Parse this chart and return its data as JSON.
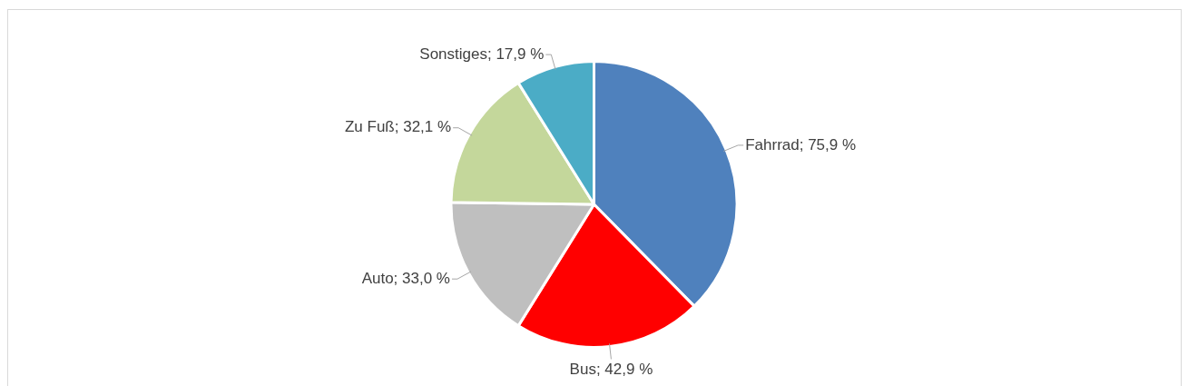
{
  "chart_data": {
    "type": "pie",
    "categories": [
      "Fahrrad",
      "Bus",
      "Auto",
      "Zu Fuß",
      "Sonstiges"
    ],
    "values": [
      75.9,
      42.9,
      33.0,
      32.1,
      17.9
    ],
    "value_labels": [
      "75,9 %",
      "42,9 %",
      "33,0 %",
      "32,1 %",
      "17,9 %"
    ],
    "colors": [
      "#4f81bd",
      "#ff0000",
      "#bfbfbf",
      "#c4d79b",
      "#4bacc6"
    ],
    "legend": false
  }
}
